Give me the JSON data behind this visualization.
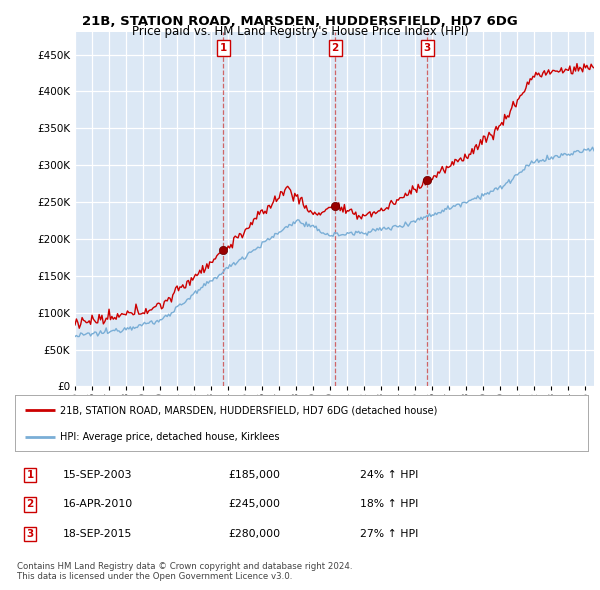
{
  "title1": "21B, STATION ROAD, MARSDEN, HUDDERSFIELD, HD7 6DG",
  "title2": "Price paid vs. HM Land Registry's House Price Index (HPI)",
  "ytick_values": [
    0,
    50000,
    100000,
    150000,
    200000,
    250000,
    300000,
    350000,
    400000,
    450000
  ],
  "xlim_start": 1995.0,
  "xlim_end": 2025.5,
  "ylim_min": 0,
  "ylim_max": 480000,
  "red_line_color": "#cc0000",
  "blue_line_color": "#7aaed6",
  "sale1_date": 2003.71,
  "sale1_price": 185000,
  "sale2_date": 2010.29,
  "sale2_price": 245000,
  "sale3_date": 2015.71,
  "sale3_price": 280000,
  "legend_label_red": "21B, STATION ROAD, MARSDEN, HUDDERSFIELD, HD7 6DG (detached house)",
  "legend_label_blue": "HPI: Average price, detached house, Kirklees",
  "table_rows": [
    [
      "1",
      "15-SEP-2003",
      "£185,000",
      "24% ↑ HPI"
    ],
    [
      "2",
      "16-APR-2010",
      "£245,000",
      "18% ↑ HPI"
    ],
    [
      "3",
      "18-SEP-2015",
      "£280,000",
      "27% ↑ HPI"
    ]
  ],
  "footnote1": "Contains HM Land Registry data © Crown copyright and database right 2024.",
  "footnote2": "This data is licensed under the Open Government Licence v3.0.",
  "plot_bg_color": "#dce8f5",
  "grid_color": "#ffffff"
}
